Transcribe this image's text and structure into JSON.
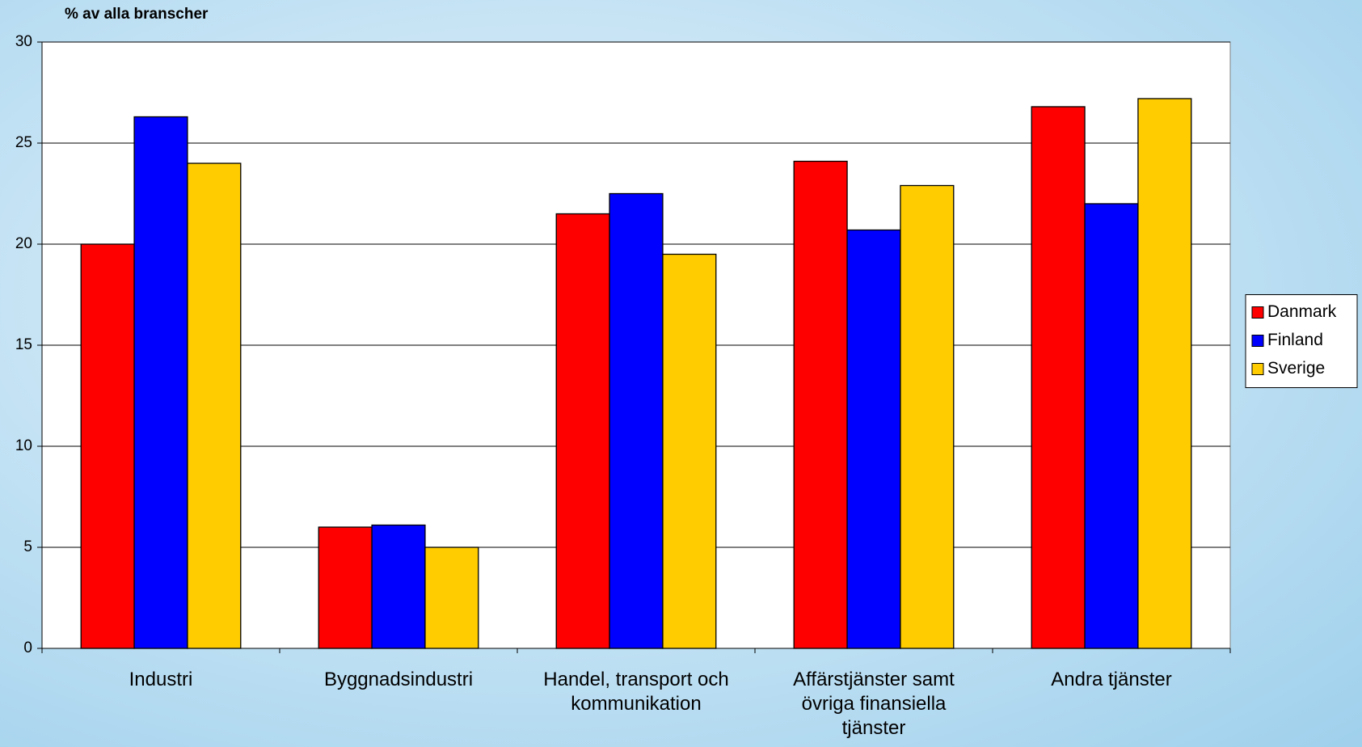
{
  "chart_data": {
    "type": "bar",
    "y_label": "% av alla branscher",
    "categories": [
      "Industri",
      "Byggnadsindustri",
      "Handel, transport och kommunikation",
      "Affärstjänster samt övriga finansiella tjänster",
      "Andra tjänster"
    ],
    "series": [
      {
        "name": "Danmark",
        "color": "#ff0000",
        "values": [
          20,
          6,
          21.5,
          24.1,
          26.8
        ]
      },
      {
        "name": "Finland",
        "color": "#0000ff",
        "values": [
          26.3,
          6.1,
          22.5,
          20.7,
          22
        ]
      },
      {
        "name": "Sverige",
        "color": "#ffcc00",
        "values": [
          24,
          5,
          19.5,
          22.9,
          27.2
        ]
      }
    ],
    "ylim": [
      0,
      30
    ],
    "yticks": [
      0,
      5,
      10,
      15,
      20,
      25,
      30
    ],
    "grid": true,
    "legend": "right"
  }
}
